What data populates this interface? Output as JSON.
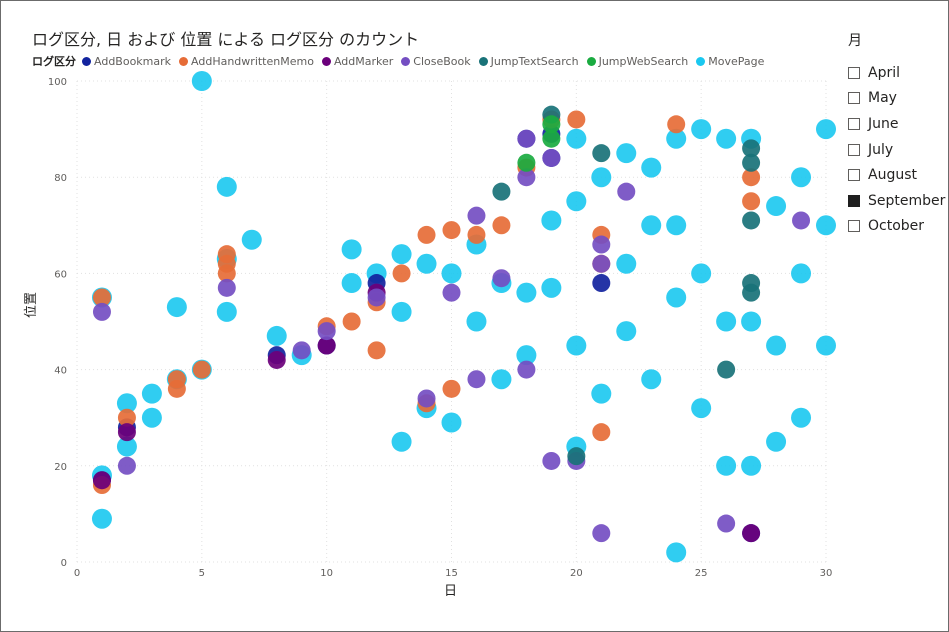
{
  "title": "ログ区分, 日 および 位置 による ログ区分 のカウント",
  "legend_title": "ログ区分",
  "slicer": {
    "title": "月",
    "options": [
      {
        "label": "April",
        "checked": false
      },
      {
        "label": "May",
        "checked": false
      },
      {
        "label": "June",
        "checked": false
      },
      {
        "label": "July",
        "checked": false
      },
      {
        "label": "August",
        "checked": false
      },
      {
        "label": "September",
        "checked": true
      },
      {
        "label": "October",
        "checked": false
      }
    ]
  },
  "chart_data": {
    "type": "scatter",
    "title": "ログ区分, 日 および 位置 による ログ区分 のカウント",
    "xlabel": "日",
    "ylabel": "位置",
    "xlim": [
      0,
      30
    ],
    "ylim": [
      0,
      100
    ],
    "xticks": [
      0,
      5,
      10,
      15,
      20,
      25,
      30
    ],
    "yticks": [
      0,
      20,
      40,
      60,
      80,
      100
    ],
    "grid": true,
    "legend_position": "top",
    "series": [
      {
        "name": "AddBookmark",
        "color": "#12239e",
        "points": [
          [
            1,
            17
          ],
          [
            2,
            28
          ],
          [
            8,
            43
          ],
          [
            10,
            45
          ],
          [
            12,
            58
          ],
          [
            18,
            88
          ],
          [
            19,
            89
          ],
          [
            19,
            84
          ],
          [
            21,
            58
          ],
          [
            27,
            6
          ]
        ]
      },
      {
        "name": "AddHandwrittenMemo",
        "color": "#e66c37",
        "points": [
          [
            1,
            16
          ],
          [
            1,
            55
          ],
          [
            2,
            30
          ],
          [
            4,
            36
          ],
          [
            4,
            38
          ],
          [
            5,
            40
          ],
          [
            6,
            62
          ],
          [
            6,
            64
          ],
          [
            6,
            60
          ],
          [
            10,
            49
          ],
          [
            11,
            50
          ],
          [
            12,
            54
          ],
          [
            12,
            44
          ],
          [
            13,
            60
          ],
          [
            14,
            33
          ],
          [
            14,
            68
          ],
          [
            15,
            69
          ],
          [
            15,
            36
          ],
          [
            16,
            68
          ],
          [
            17,
            70
          ],
          [
            18,
            82
          ],
          [
            19,
            92
          ],
          [
            20,
            92
          ],
          [
            21,
            68
          ],
          [
            21,
            62
          ],
          [
            21,
            27
          ],
          [
            24,
            91
          ],
          [
            27,
            80
          ],
          [
            27,
            75
          ]
        ]
      },
      {
        "name": "AddMarker",
        "color": "#6b007b",
        "points": [
          [
            1,
            17
          ],
          [
            2,
            27
          ],
          [
            8,
            42
          ],
          [
            10,
            45
          ],
          [
            12,
            56
          ],
          [
            27,
            6
          ]
        ]
      },
      {
        "name": "CloseBook",
        "color": "#744ec2",
        "points": [
          [
            1,
            52
          ],
          [
            2,
            20
          ],
          [
            6,
            57
          ],
          [
            9,
            44
          ],
          [
            10,
            48
          ],
          [
            12,
            55
          ],
          [
            14,
            34
          ],
          [
            15,
            56
          ],
          [
            16,
            38
          ],
          [
            16,
            72
          ],
          [
            17,
            59
          ],
          [
            18,
            88
          ],
          [
            18,
            80
          ],
          [
            18,
            40
          ],
          [
            19,
            21
          ],
          [
            19,
            84
          ],
          [
            20,
            21
          ],
          [
            21,
            6
          ],
          [
            21,
            66
          ],
          [
            21,
            62
          ],
          [
            22,
            77
          ],
          [
            26,
            8
          ],
          [
            29,
            71
          ]
        ]
      },
      {
        "name": "JumpTextSearch",
        "color": "#197278",
        "points": [
          [
            17,
            77
          ],
          [
            19,
            93
          ],
          [
            20,
            22
          ],
          [
            21,
            85
          ],
          [
            26,
            40
          ],
          [
            27,
            86
          ],
          [
            27,
            83
          ],
          [
            27,
            71
          ],
          [
            27,
            56
          ],
          [
            27,
            58
          ]
        ]
      },
      {
        "name": "JumpWebSearch",
        "color": "#1aab40",
        "points": [
          [
            18,
            83
          ],
          [
            19,
            91
          ],
          [
            19,
            88
          ]
        ]
      },
      {
        "name": "MovePage",
        "color": "#1ac8f0",
        "points": [
          [
            1,
            18
          ],
          [
            1,
            9
          ],
          [
            1,
            55
          ],
          [
            2,
            33
          ],
          [
            2,
            24
          ],
          [
            3,
            35
          ],
          [
            3,
            30
          ],
          [
            4,
            38
          ],
          [
            4,
            53
          ],
          [
            5,
            40
          ],
          [
            5,
            100
          ],
          [
            6,
            63
          ],
          [
            6,
            78
          ],
          [
            6,
            52
          ],
          [
            7,
            67
          ],
          [
            8,
            47
          ],
          [
            9,
            43
          ],
          [
            11,
            65
          ],
          [
            11,
            58
          ],
          [
            12,
            60
          ],
          [
            13,
            64
          ],
          [
            13,
            52
          ],
          [
            13,
            25
          ],
          [
            14,
            32
          ],
          [
            14,
            62
          ],
          [
            15,
            60
          ],
          [
            15,
            29
          ],
          [
            16,
            66
          ],
          [
            16,
            50
          ],
          [
            17,
            38
          ],
          [
            17,
            58
          ],
          [
            18,
            56
          ],
          [
            18,
            43
          ],
          [
            19,
            57
          ],
          [
            19,
            71
          ],
          [
            20,
            88
          ],
          [
            20,
            75
          ],
          [
            20,
            45
          ],
          [
            20,
            24
          ],
          [
            21,
            80
          ],
          [
            21,
            35
          ],
          [
            22,
            85
          ],
          [
            22,
            62
          ],
          [
            22,
            48
          ],
          [
            23,
            82
          ],
          [
            23,
            70
          ],
          [
            23,
            38
          ],
          [
            24,
            88
          ],
          [
            24,
            70
          ],
          [
            24,
            55
          ],
          [
            24,
            2
          ],
          [
            25,
            90
          ],
          [
            25,
            60
          ],
          [
            25,
            32
          ],
          [
            26,
            88
          ],
          [
            26,
            50
          ],
          [
            26,
            20
          ],
          [
            27,
            88
          ],
          [
            27,
            50
          ],
          [
            27,
            20
          ],
          [
            28,
            74
          ],
          [
            28,
            45
          ],
          [
            28,
            25
          ],
          [
            29,
            80
          ],
          [
            29,
            60
          ],
          [
            29,
            30
          ],
          [
            30,
            90
          ],
          [
            30,
            70
          ],
          [
            30,
            45
          ]
        ]
      }
    ]
  }
}
